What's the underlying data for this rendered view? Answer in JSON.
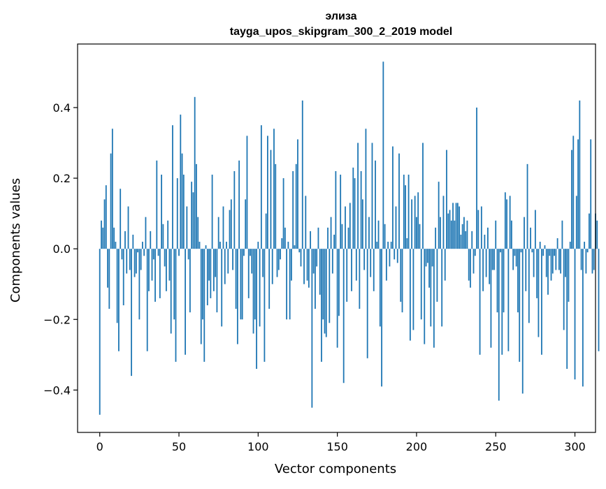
{
  "chart_data": {
    "type": "bar",
    "title_line1": "элиза",
    "title_line2": "tayga_upos_skipgram_300_2_2019 model",
    "xlabel": "Vector components",
    "ylabel": "Components values",
    "xlim": [
      -14,
      313
    ],
    "ylim": [
      -0.52,
      0.58
    ],
    "xticks": [
      0,
      50,
      100,
      150,
      200,
      250,
      300
    ],
    "xtick_labels": [
      "0",
      "50",
      "100",
      "150",
      "200",
      "250",
      "300"
    ],
    "yticks": [
      -0.4,
      -0.2,
      0.0,
      0.2,
      0.4
    ],
    "ytick_labels": [
      "−0.4",
      "−0.2",
      "0.0",
      "0.2",
      "0.4"
    ],
    "bar_color": "#1f77b4",
    "values": [
      -0.47,
      0.08,
      0.06,
      0.14,
      0.18,
      -0.11,
      -0.17,
      0.27,
      0.34,
      0.06,
      0.02,
      -0.21,
      -0.29,
      0.17,
      -0.03,
      -0.16,
      0.05,
      -0.07,
      0.12,
      -0.06,
      -0.36,
      0.04,
      -0.08,
      -0.07,
      -0.01,
      -0.2,
      -0.06,
      0.02,
      -0.02,
      0.09,
      -0.29,
      -0.12,
      0.05,
      -0.09,
      -0.03,
      -0.15,
      0.25,
      -0.02,
      -0.14,
      0.21,
      0.07,
      -0.05,
      -0.12,
      0.08,
      -0.09,
      -0.24,
      0.35,
      -0.2,
      -0.32,
      0.2,
      -0.02,
      0.38,
      0.27,
      0.21,
      -0.3,
      0.12,
      -0.03,
      -0.18,
      0.19,
      0.16,
      0.43,
      0.24,
      0.09,
      0.02,
      -0.27,
      -0.2,
      -0.32,
      0.01,
      -0.16,
      -0.09,
      -0.14,
      0.21,
      -0.12,
      -0.08,
      -0.18,
      0.09,
      0.02,
      -0.22,
      0.12,
      -0.1,
      0.02,
      -0.07,
      0.11,
      0.14,
      -0.06,
      0.22,
      -0.17,
      -0.27,
      0.25,
      -0.2,
      -0.2,
      -0.02,
      0.14,
      0.32,
      -0.14,
      -0.02,
      -0.07,
      -0.24,
      -0.2,
      -0.34,
      0.02,
      -0.22,
      0.35,
      -0.08,
      -0.32,
      0.1,
      0.32,
      -0.17,
      0.28,
      -0.1,
      0.34,
      0.24,
      -0.08,
      -0.06,
      -0.03,
      0.03,
      0.2,
      0.06,
      -0.2,
      0.02,
      -0.2,
      -0.09,
      0.22,
      0.01,
      0.24,
      0.31,
      -0.01,
      -0.05,
      0.42,
      -0.1,
      0.15,
      -0.09,
      -0.11,
      0.05,
      -0.45,
      -0.07,
      -0.17,
      -0.05,
      0.06,
      -0.13,
      -0.32,
      -0.2,
      -0.24,
      -0.25,
      0.06,
      -0.21,
      0.09,
      -0.07,
      0.04,
      0.22,
      -0.28,
      -0.19,
      0.21,
      0.07,
      -0.38,
      0.12,
      -0.15,
      0.06,
      0.13,
      -0.12,
      0.23,
      0.2,
      -0.09,
      0.3,
      -0.17,
      0.22,
      0.14,
      -0.06,
      0.34,
      -0.31,
      0.09,
      -0.08,
      0.3,
      -0.12,
      0.25,
      0.02,
      0.08,
      -0.22,
      -0.39,
      0.53,
      0.07,
      -0.09,
      0.02,
      -0.05,
      0.02,
      0.29,
      -0.03,
      0.12,
      -0.04,
      0.27,
      -0.15,
      -0.18,
      0.21,
      0.18,
      0.03,
      0.21,
      -0.26,
      0.14,
      -0.23,
      0.15,
      0.09,
      0.16,
      0.07,
      -0.2,
      0.3,
      -0.27,
      -0.05,
      -0.04,
      -0.11,
      -0.22,
      -0.05,
      -0.28,
      0.06,
      -0.15,
      0.19,
      0.09,
      -0.22,
      0.15,
      -0.09,
      0.28,
      0.1,
      0.11,
      0.08,
      0.13,
      0.08,
      0.13,
      0.13,
      0.12,
      0.04,
      0.07,
      0.09,
      0.05,
      0.08,
      -0.09,
      -0.11,
      0.05,
      -0.07,
      -0.02,
      0.4,
      0.11,
      -0.3,
      0.12,
      -0.12,
      0.04,
      -0.08,
      0.06,
      -0.1,
      -0.28,
      -0.06,
      -0.06,
      0.08,
      -0.18,
      -0.43,
      -0.01,
      -0.3,
      -0.18,
      0.16,
      0.14,
      -0.29,
      0.15,
      0.08,
      -0.06,
      -0.02,
      -0.05,
      -0.18,
      -0.32,
      -0.01,
      -0.41,
      0.09,
      -0.12,
      0.24,
      -0.21,
      0.06,
      -0.01,
      -0.08,
      0.11,
      -0.14,
      -0.25,
      0.02,
      -0.3,
      -0.02,
      0.01,
      -0.08,
      -0.13,
      -0.02,
      -0.09,
      -0.07,
      -0.02,
      -0.06,
      0.03,
      -0.06,
      -0.07,
      0.08,
      -0.23,
      -0.08,
      -0.34,
      -0.15,
      0.02,
      0.28,
      0.32,
      -0.37,
      0.15,
      0.31,
      0.42,
      -0.06,
      -0.39,
      0.02,
      -0.07,
      -0.01,
      0.1,
      0.31,
      -0.07,
      -0.06,
      0.1,
      0.08,
      -0.29
    ]
  }
}
